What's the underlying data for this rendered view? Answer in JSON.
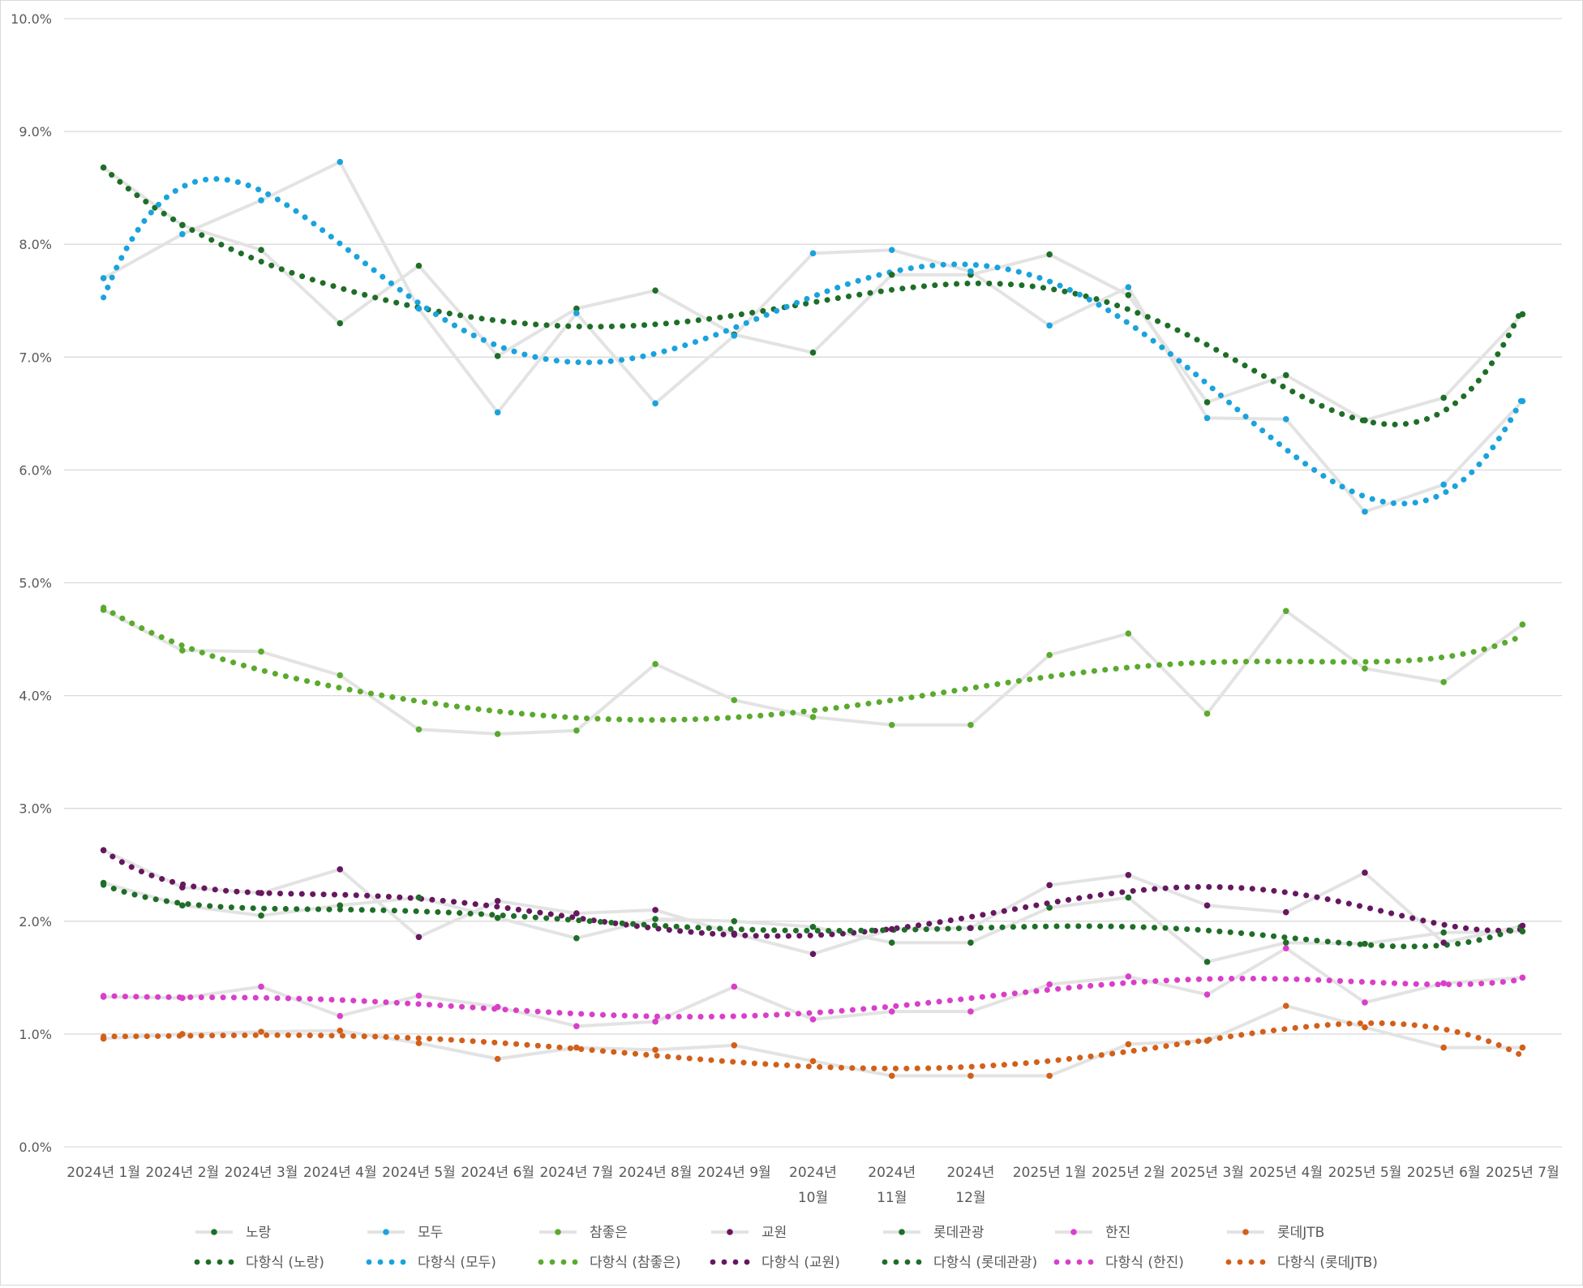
{
  "chart_data": {
    "type": "line",
    "title": "",
    "xlabel": "",
    "ylabel": "",
    "ylim": [
      0,
      0.1
    ],
    "yticks": [
      "0.0%",
      "1.0%",
      "2.0%",
      "3.0%",
      "4.0%",
      "5.0%",
      "6.0%",
      "7.0%",
      "8.0%",
      "9.0%",
      "10.0%"
    ],
    "categories": [
      [
        "2024년 1월"
      ],
      [
        "2024년 2월"
      ],
      [
        "2024년 3월"
      ],
      [
        "2024년 4월"
      ],
      [
        "2024년 5월"
      ],
      [
        "2024년 6월"
      ],
      [
        "2024년 7월"
      ],
      [
        "2024년 8월"
      ],
      [
        "2024년 9월"
      ],
      [
        "2024년",
        "10월"
      ],
      [
        "2024년",
        "11월"
      ],
      [
        "2024년",
        "12월"
      ],
      [
        "2025년 1월"
      ],
      [
        "2025년 2월"
      ],
      [
        "2025년 3월"
      ],
      [
        "2025년 4월"
      ],
      [
        "2025년 5월"
      ],
      [
        "2025년 6월"
      ],
      [
        "2025년 7월"
      ]
    ],
    "grid": true,
    "legend_position": "bottom",
    "line_color": "#e3e3e3",
    "series": [
      {
        "name": "노랑",
        "color": "#1e6e28",
        "values": [
          0.0868,
          0.0817,
          0.0795,
          0.073,
          0.0781,
          0.0701,
          0.0743,
          0.0759,
          0.072,
          0.0704,
          0.0773,
          0.0773,
          0.0791,
          0.0755,
          0.066,
          0.0684,
          0.0644,
          0.0664,
          0.0738
        ]
      },
      {
        "name": "모두",
        "color": "#1aa3dc",
        "values": [
          0.077,
          0.0809,
          0.0839,
          0.0873,
          0.0743,
          0.0651,
          0.0739,
          0.0659,
          0.0719,
          0.0792,
          0.0795,
          0.0776,
          0.0728,
          0.0762,
          0.0646,
          0.0645,
          0.0563,
          0.0587,
          0.0661
        ]
      },
      {
        "name": "참좋은",
        "color": "#5aaa2e",
        "values": [
          0.0476,
          0.044,
          0.0439,
          0.0418,
          0.037,
          0.0366,
          0.0369,
          0.0428,
          0.0396,
          0.0381,
          0.0374,
          0.0374,
          0.0436,
          0.0455,
          0.0384,
          0.0475,
          0.0424,
          0.0412,
          0.0463
        ]
      },
      {
        "name": "교원",
        "color": "#66185f",
        "values": [
          0.0263,
          0.023,
          0.0225,
          0.0246,
          0.0186,
          0.0218,
          0.0207,
          0.021,
          0.0189,
          0.0171,
          0.0193,
          0.0194,
          0.0232,
          0.0241,
          0.0214,
          0.0208,
          0.0243,
          0.0181,
          0.0196
        ]
      },
      {
        "name": "롯데관광",
        "color": "#1e6e28",
        "values": [
          0.0234,
          0.0214,
          0.0205,
          0.0214,
          0.0221,
          0.0203,
          0.0185,
          0.0202,
          0.02,
          0.0195,
          0.0181,
          0.0181,
          0.0212,
          0.0221,
          0.0164,
          0.0181,
          0.018,
          0.019,
          0.0191
        ]
      },
      {
        "name": "한진",
        "color": "#d93fc9",
        "values": [
          0.0133,
          0.0132,
          0.0142,
          0.0116,
          0.0134,
          0.0124,
          0.0107,
          0.0111,
          0.0142,
          0.0113,
          0.012,
          0.012,
          0.0144,
          0.0151,
          0.0135,
          0.0176,
          0.0128,
          0.0145,
          0.015
        ]
      },
      {
        "name": "롯데JTB",
        "color": "#d2601a",
        "values": [
          0.0096,
          0.01,
          0.0102,
          0.0103,
          0.0092,
          0.0078,
          0.0088,
          0.0086,
          0.009,
          0.0076,
          0.0063,
          0.0063,
          0.0063,
          0.0091,
          0.0094,
          0.0125,
          0.0106,
          0.0088,
          0.0088
        ]
      }
    ],
    "trendlines": [
      {
        "name": "다항식 (노랑)",
        "type": "polynomial",
        "color": "#1e6e28",
        "of": "노랑"
      },
      {
        "name": "다항식 (모두)",
        "type": "polynomial",
        "color": "#1aa3dc",
        "of": "모두"
      },
      {
        "name": "다항식 (참좋은)",
        "type": "polynomial",
        "color": "#5aaa2e",
        "of": "참좋은"
      },
      {
        "name": "다항식 (교원)",
        "type": "polynomial",
        "color": "#66185f",
        "of": "교원"
      },
      {
        "name": "다항식 (롯데관광)",
        "type": "polynomial",
        "color": "#1e6e28",
        "of": "롯데관광"
      },
      {
        "name": "다항식 (한진)",
        "type": "polynomial",
        "color": "#d93fc9",
        "of": "한진"
      },
      {
        "name": "다항식 (롯데JTB)",
        "type": "polynomial",
        "color": "#d2601a",
        "of": "롯데JTB"
      }
    ]
  }
}
